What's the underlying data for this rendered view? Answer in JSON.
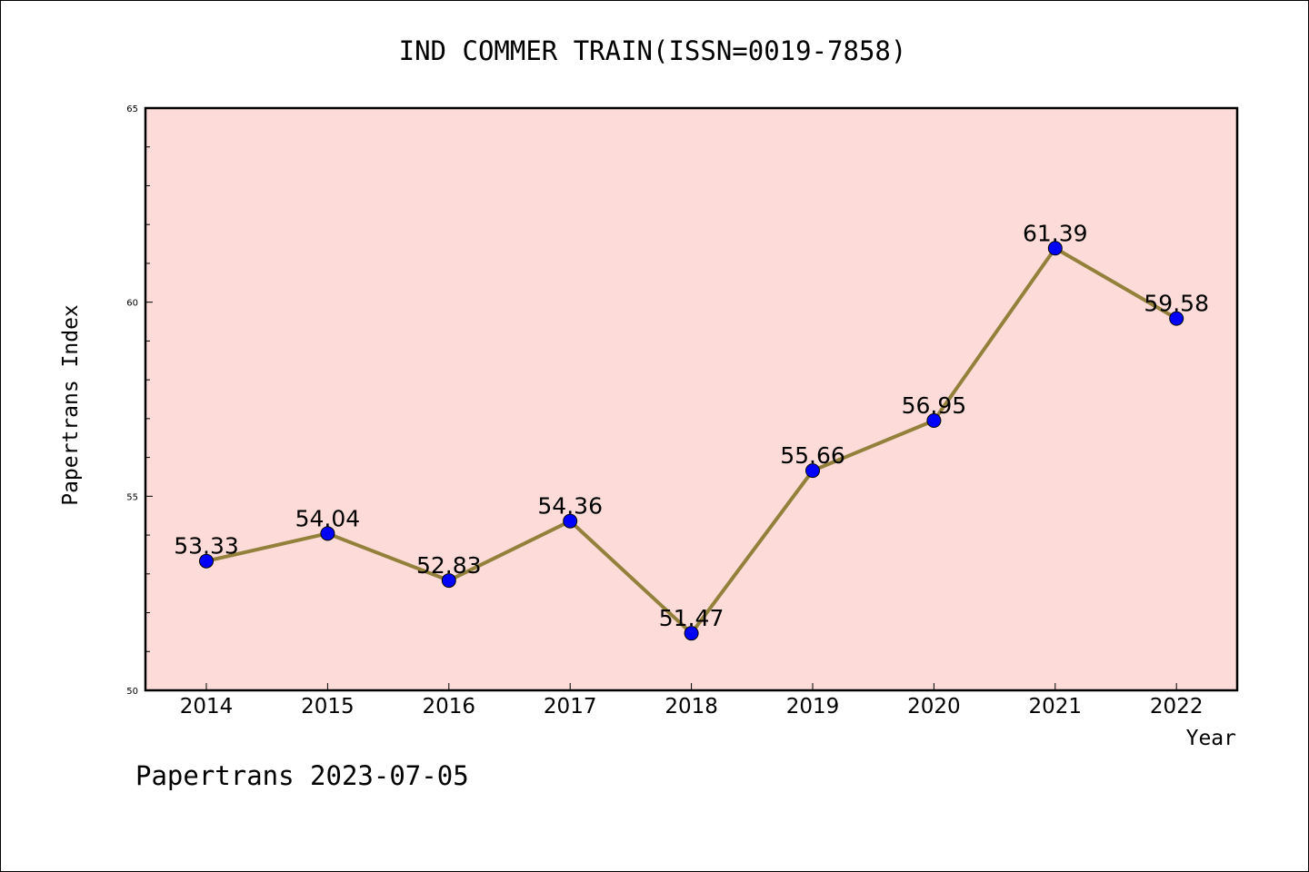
{
  "chart_data": {
    "type": "line",
    "title": "IND COMMER TRAIN(ISSN=0019-7858)",
    "xlabel": "Year",
    "ylabel": "Papertrans Index",
    "categories": [
      "2014",
      "2015",
      "2016",
      "2017",
      "2018",
      "2019",
      "2020",
      "2021",
      "2022"
    ],
    "series": [
      {
        "values": [
          53.33,
          54.04,
          52.83,
          54.36,
          51.47,
          55.66,
          56.95,
          61.39,
          59.58
        ],
        "data_labels": [
          "53.33",
          "54.04",
          "52.83",
          "54.36",
          "51.47",
          "55.66",
          "56.95",
          "61.39",
          "59.58"
        ]
      }
    ],
    "ylim": [
      50,
      65
    ],
    "y_ticks": [
      "50",
      "55",
      "60",
      "65"
    ],
    "grid": false,
    "colors": {
      "plot_background": "#fddbd8",
      "line": "#93803a",
      "marker": "#0000ff"
    }
  },
  "footer": {
    "text": "Papertrans 2023-07-05"
  }
}
